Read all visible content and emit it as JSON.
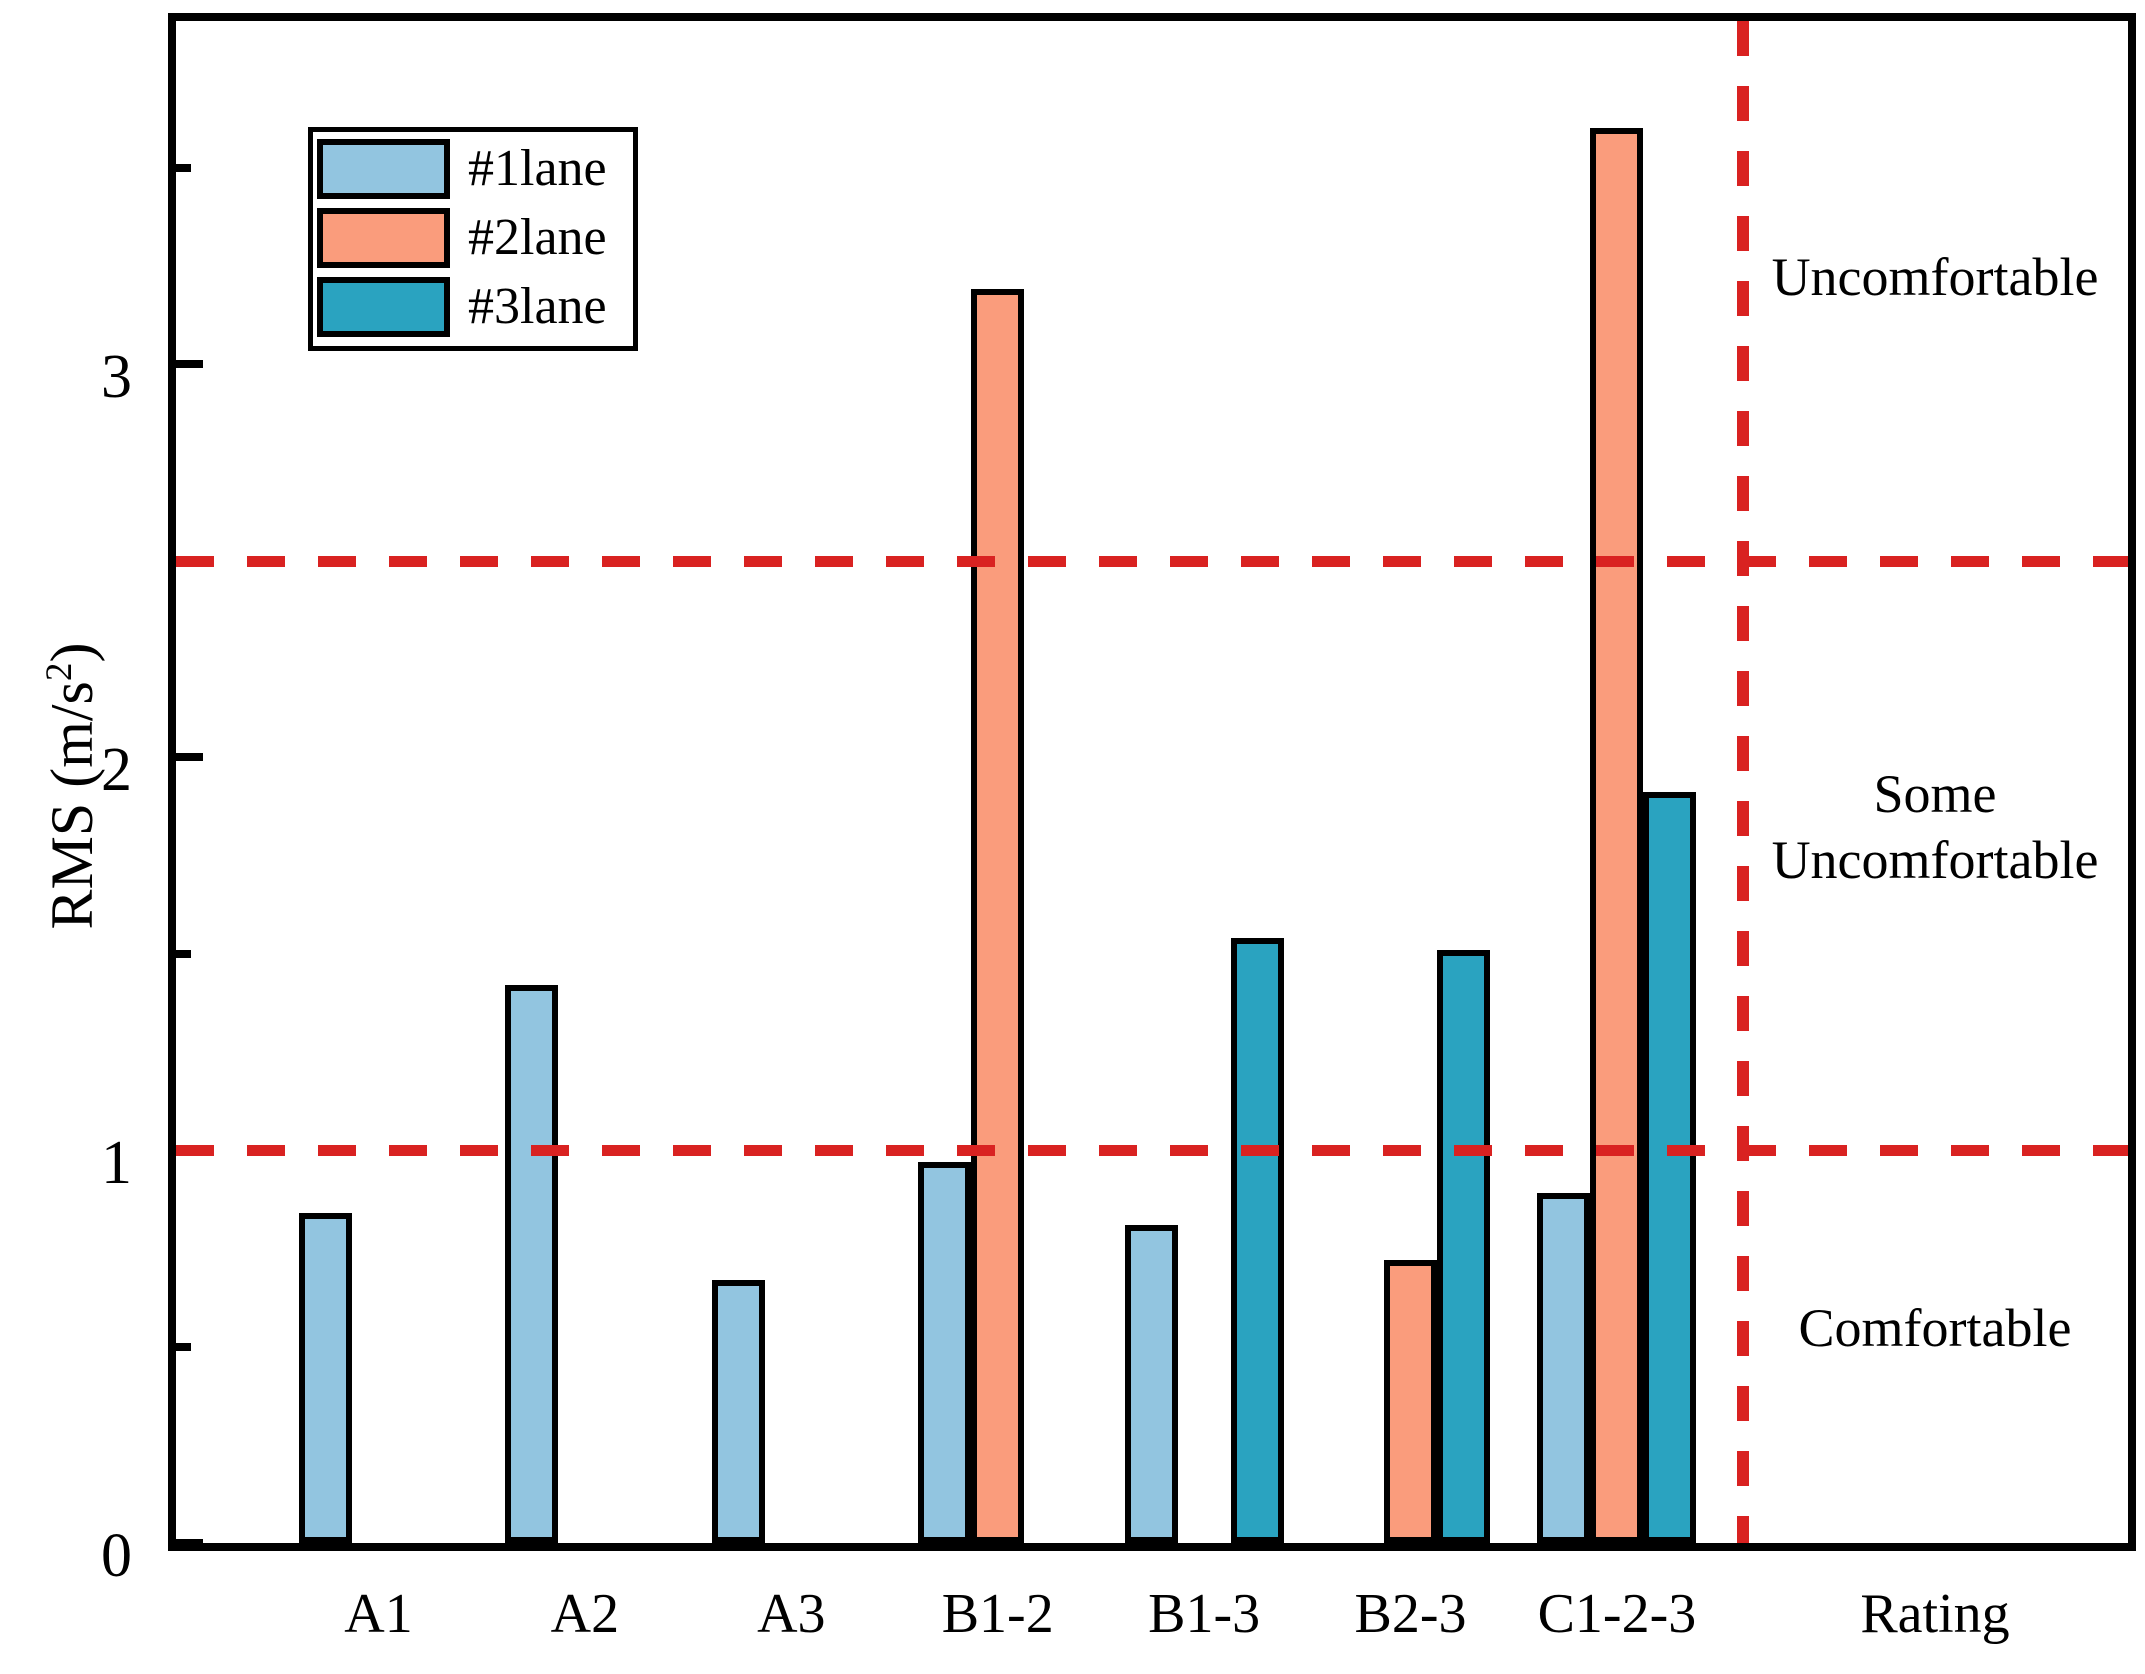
{
  "chart_data": {
    "type": "bar",
    "title": "",
    "ylabel": "RMS (m/s2)",
    "ylabel_main": "RMS (m/s",
    "ylabel_sup": "2",
    "ylabel_end": ")",
    "categories": [
      "A1",
      "A2",
      "A3",
      "B1-2",
      "B1-3",
      "B2-3",
      "C1-2-3"
    ],
    "series": [
      {
        "name": "#1lane",
        "color": "#92C5E0",
        "values": [
          0.84,
          1.42,
          0.67,
          0.97,
          0.81,
          null,
          0.89
        ]
      },
      {
        "name": "#2lane",
        "color": "#FA9C7C",
        "values": [
          null,
          null,
          null,
          3.19,
          null,
          0.72,
          3.6
        ]
      },
      {
        "name": "#3lane",
        "color": "#2AA3C0",
        "values": [
          null,
          null,
          null,
          null,
          1.54,
          1.51,
          1.91
        ]
      }
    ],
    "yaxis": {
      "major_ticks": [
        0,
        1,
        2,
        3
      ],
      "minor_ticks": [
        0.5,
        1.5,
        2.5,
        3.5
      ],
      "ylim": [
        0,
        3.87
      ]
    },
    "thresholds": {
      "values": [
        1,
        2.5
      ],
      "color": "#D92221",
      "style": "dashed"
    },
    "rating_axis_label": "Rating",
    "zone_labels": [
      {
        "text": "Uncomfortable"
      },
      {
        "text": "Some\nUncomfortable"
      },
      {
        "text": "Comfortable"
      }
    ],
    "legend_position": "top-left",
    "grid": false,
    "bar_border_color": "#000000",
    "frame_color": "#000000"
  }
}
